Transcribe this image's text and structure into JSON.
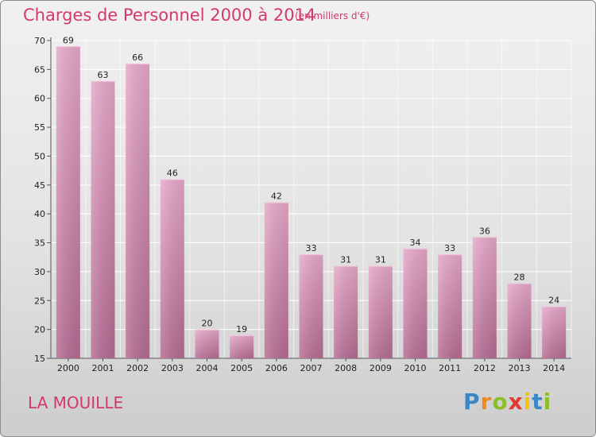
{
  "chart_data": {
    "type": "bar",
    "title": "Charges de Personnel 2000 à 2014",
    "subtitle": "(en milliers d'€)",
    "categories": [
      "2000",
      "2001",
      "2002",
      "2003",
      "2004",
      "2005",
      "2006",
      "2007",
      "2008",
      "2009",
      "2010",
      "2011",
      "2012",
      "2013",
      "2014"
    ],
    "values": [
      69,
      63,
      66,
      46,
      20,
      19,
      42,
      33,
      31,
      31,
      34,
      33,
      36,
      28,
      24
    ],
    "ylim": [
      15,
      70
    ],
    "yticks": [
      15,
      20,
      25,
      30,
      35,
      40,
      45,
      50,
      55,
      60,
      65,
      70
    ],
    "grid": true,
    "bar_color": "#d580ab"
  },
  "commune": "LA MOUILLE",
  "logo": {
    "letters": [
      "P",
      "r",
      "o",
      "x",
      "i",
      "t",
      "i"
    ],
    "colors": [
      "#3a86c8",
      "#f08a1c",
      "#8cbf26",
      "#e23a2e",
      "#f4c20d",
      "#3a86c8",
      "#8cbf26"
    ]
  },
  "colors": {
    "accent": "#d23a6d"
  }
}
